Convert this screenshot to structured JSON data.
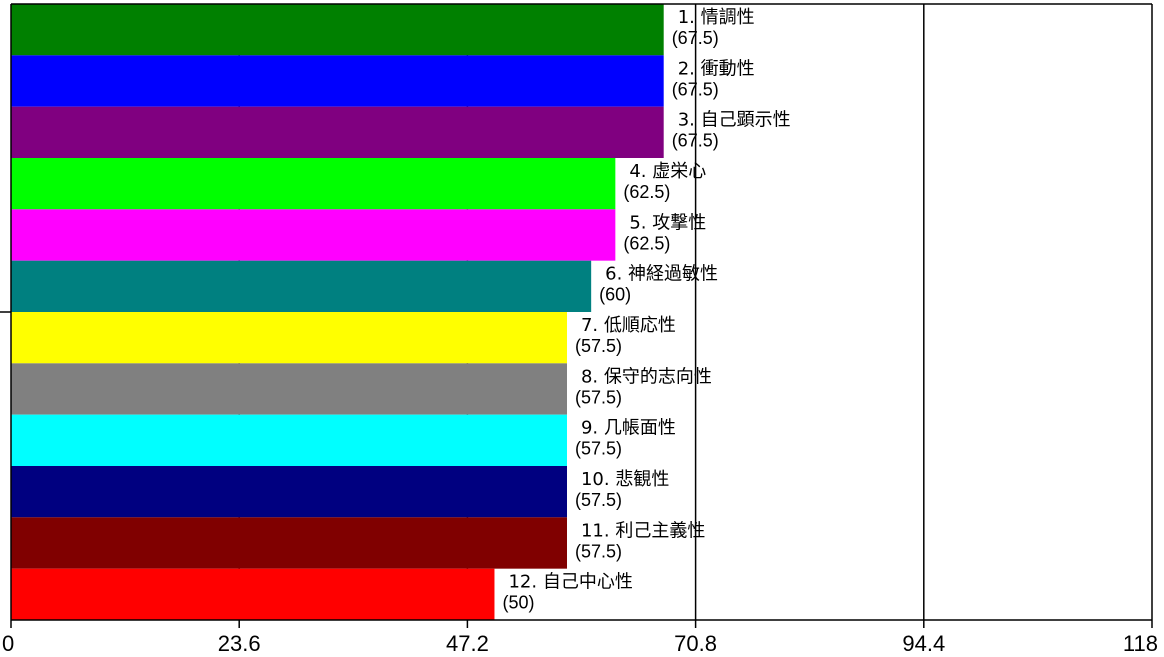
{
  "chart_data": {
    "type": "bar",
    "orientation": "horizontal",
    "categories": [
      "1. 情調性",
      "2. 衝動性",
      "3. 自己顕示性",
      "4. 虚栄心",
      "5. 攻撃性",
      "6. 神経過敏性",
      "7. 低順応性",
      "8. 保守的志向性",
      "9. 几帳面性",
      "10. 悲観性",
      "11. 利己主義性",
      "12. 自己中心性"
    ],
    "values": [
      67.5,
      67.5,
      67.5,
      62.5,
      62.5,
      60,
      57.5,
      57.5,
      57.5,
      57.5,
      57.5,
      50
    ],
    "value_labels": [
      "(67.5)",
      "(67.5)",
      "(67.5)",
      "(62.5)",
      "(62.5)",
      "(60)",
      "(57.5)",
      "(57.5)",
      "(57.5)",
      "(57.5)",
      "(57.5)",
      "(50)"
    ],
    "colors": [
      "#008000",
      "#0000ff",
      "#800080",
      "#00ff00",
      "#ff00ff",
      "#008080",
      "#ffff00",
      "#808080",
      "#00ffff",
      "#000080",
      "#800000",
      "#ff0000"
    ],
    "xlim": [
      0,
      118
    ],
    "x_ticks": [
      0,
      23.6,
      47.2,
      70.8,
      94.4,
      118
    ],
    "x_tick_labels": [
      "0",
      "23.6",
      "47.2",
      "70.8",
      "94.4",
      "118"
    ],
    "grid_x": true,
    "title": "",
    "xlabel": "",
    "ylabel": ""
  }
}
